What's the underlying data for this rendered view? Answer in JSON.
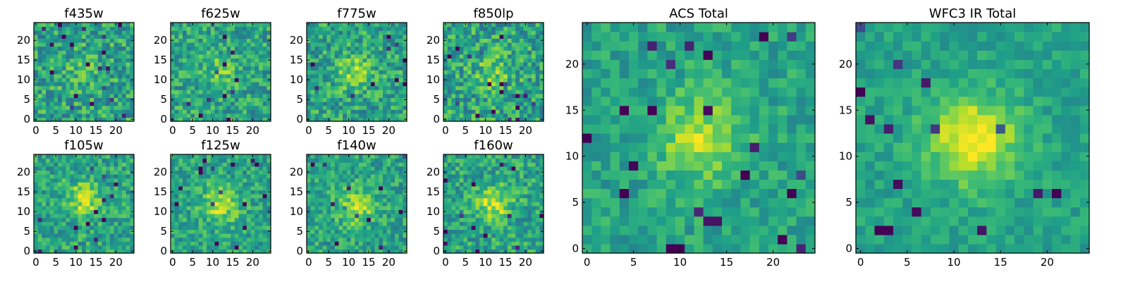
{
  "chart_data": [
    {
      "type": "heatmap",
      "title": "f435w",
      "grid": false,
      "xlim": [
        -0.5,
        24.5
      ],
      "ylim": [
        -0.5,
        24.5
      ],
      "x_ticks": [
        0,
        5,
        10,
        15,
        20
      ],
      "y_ticks": [
        0,
        5,
        10,
        15,
        20
      ],
      "colormap": "viridis",
      "source_peak": [
        12,
        12
      ],
      "peak_strength": 0.08,
      "noise_level": 0.22,
      "value_range": [
        0,
        1
      ]
    },
    {
      "type": "heatmap",
      "title": "f625w",
      "grid": false,
      "xlim": [
        -0.5,
        24.5
      ],
      "ylim": [
        -0.5,
        24.5
      ],
      "x_ticks": [
        0,
        5,
        10,
        15,
        20
      ],
      "y_ticks": [
        0,
        5,
        10,
        15,
        20
      ],
      "colormap": "viridis",
      "source_peak": [
        12,
        12
      ],
      "peak_strength": 0.18,
      "noise_level": 0.2,
      "value_range": [
        0,
        1
      ]
    },
    {
      "type": "heatmap",
      "title": "f775w",
      "grid": false,
      "xlim": [
        -0.5,
        24.5
      ],
      "ylim": [
        -0.5,
        24.5
      ],
      "x_ticks": [
        0,
        5,
        10,
        15,
        20
      ],
      "y_ticks": [
        0,
        5,
        10,
        15,
        20
      ],
      "colormap": "viridis",
      "source_peak": [
        12,
        12
      ],
      "peak_strength": 0.25,
      "noise_level": 0.2,
      "value_range": [
        0,
        1
      ]
    },
    {
      "type": "heatmap",
      "title": "f850lp",
      "grid": false,
      "xlim": [
        -0.5,
        24.5
      ],
      "ylim": [
        -0.5,
        24.5
      ],
      "x_ticks": [
        0,
        5,
        10,
        15,
        20
      ],
      "y_ticks": [
        0,
        5,
        10,
        15,
        20
      ],
      "colormap": "viridis",
      "source_peak": [
        12,
        12
      ],
      "peak_strength": 0.2,
      "noise_level": 0.22,
      "value_range": [
        0,
        1
      ]
    },
    {
      "type": "heatmap",
      "title": "f105w",
      "grid": false,
      "xlim": [
        -0.5,
        24.5
      ],
      "ylim": [
        -0.5,
        24.5
      ],
      "x_ticks": [
        0,
        5,
        10,
        15,
        20
      ],
      "y_ticks": [
        0,
        5,
        10,
        15,
        20
      ],
      "colormap": "viridis",
      "source_peak": [
        12,
        13
      ],
      "peak_strength": 0.32,
      "noise_level": 0.18,
      "value_range": [
        0,
        1
      ]
    },
    {
      "type": "heatmap",
      "title": "f125w",
      "grid": false,
      "xlim": [
        -0.5,
        24.5
      ],
      "ylim": [
        -0.5,
        24.5
      ],
      "x_ticks": [
        0,
        5,
        10,
        15,
        20
      ],
      "y_ticks": [
        0,
        5,
        10,
        15,
        20
      ],
      "colormap": "viridis",
      "source_peak": [
        12,
        12
      ],
      "peak_strength": 0.3,
      "noise_level": 0.17,
      "value_range": [
        0,
        1
      ]
    },
    {
      "type": "heatmap",
      "title": "f140w",
      "grid": false,
      "xlim": [
        -0.5,
        24.5
      ],
      "ylim": [
        -0.5,
        24.5
      ],
      "x_ticks": [
        0,
        5,
        10,
        15,
        20
      ],
      "y_ticks": [
        0,
        5,
        10,
        15,
        20
      ],
      "colormap": "viridis",
      "source_peak": [
        12,
        11
      ],
      "peak_strength": 0.3,
      "noise_level": 0.17,
      "value_range": [
        0,
        1
      ]
    },
    {
      "type": "heatmap",
      "title": "f160w",
      "grid": false,
      "xlim": [
        -0.5,
        24.5
      ],
      "ylim": [
        -0.5,
        24.5
      ],
      "x_ticks": [
        0,
        5,
        10,
        15,
        20
      ],
      "y_ticks": [
        0,
        5,
        10,
        15,
        20
      ],
      "colormap": "viridis",
      "source_peak": [
        12,
        12
      ],
      "peak_strength": 0.33,
      "noise_level": 0.18,
      "value_range": [
        0,
        1
      ]
    },
    {
      "type": "heatmap",
      "title": "ACS Total",
      "grid": false,
      "xlim": [
        -0.5,
        24.5
      ],
      "ylim": [
        -0.5,
        24.5
      ],
      "x_ticks": [
        0,
        5,
        10,
        15,
        20
      ],
      "y_ticks": [
        0,
        5,
        10,
        15,
        20
      ],
      "colormap": "viridis",
      "source_peak": [
        12,
        12
      ],
      "peak_strength": 0.3,
      "noise_level": 0.13,
      "value_range": [
        0,
        1
      ]
    },
    {
      "type": "heatmap",
      "title": "WFC3 IR Total",
      "grid": false,
      "xlim": [
        -0.5,
        24.5
      ],
      "ylim": [
        -0.5,
        24.5
      ],
      "x_ticks": [
        0,
        5,
        10,
        15,
        20
      ],
      "y_ticks": [
        0,
        5,
        10,
        15,
        20
      ],
      "colormap": "viridis",
      "source_peak": [
        12,
        12
      ],
      "peak_strength": 0.45,
      "noise_level": 0.1,
      "value_range": [
        0,
        1
      ]
    }
  ]
}
